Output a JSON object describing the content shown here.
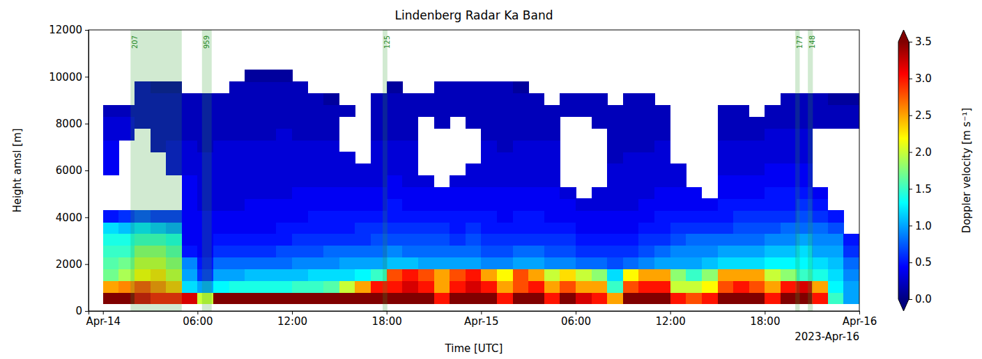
{
  "chart_data": {
    "type": "heatmap",
    "title": "Lindenberg Radar Ka Band",
    "x_label": "Time [UTC]",
    "y_label": "Height amsl [m]",
    "x_offset_label": "2023-Apr-16",
    "xlim": [
      "2023-04-13T23:05",
      "2023-04-16T00:00"
    ],
    "xticks": [
      {
        "value": "2023-04-14T00:00",
        "label": "Apr-14"
      },
      {
        "value": "2023-04-14T06:00",
        "label": "06:00"
      },
      {
        "value": "2023-04-14T12:00",
        "label": "12:00"
      },
      {
        "value": "2023-04-14T18:00",
        "label": "18:00"
      },
      {
        "value": "2023-04-15T00:00",
        "label": "Apr-15"
      },
      {
        "value": "2023-04-15T06:00",
        "label": "06:00"
      },
      {
        "value": "2023-04-15T12:00",
        "label": "12:00"
      },
      {
        "value": "2023-04-15T18:00",
        "label": "18:00"
      },
      {
        "value": "2023-04-16T00:00",
        "label": "Apr-16"
      }
    ],
    "ylim": [
      0,
      12000
    ],
    "yticks": [
      0,
      2000,
      4000,
      6000,
      8000,
      10000,
      12000
    ],
    "grid": false,
    "x_edges": [
      "2023-04-14T00:00",
      "2023-04-14T01:00",
      "2023-04-14T02:00",
      "2023-04-14T03:00",
      "2023-04-14T04:00",
      "2023-04-14T05:00",
      "2023-04-14T06:00",
      "2023-04-14T07:00",
      "2023-04-14T08:00",
      "2023-04-14T09:00",
      "2023-04-14T10:00",
      "2023-04-14T11:00",
      "2023-04-14T12:00",
      "2023-04-14T13:00",
      "2023-04-14T14:00",
      "2023-04-14T15:00",
      "2023-04-14T16:00",
      "2023-04-14T17:00",
      "2023-04-14T18:00",
      "2023-04-14T19:00",
      "2023-04-14T20:00",
      "2023-04-14T21:00",
      "2023-04-14T22:00",
      "2023-04-14T23:00",
      "2023-04-15T00:00",
      "2023-04-15T01:00",
      "2023-04-15T02:00",
      "2023-04-15T03:00",
      "2023-04-15T04:00",
      "2023-04-15T05:00",
      "2023-04-15T06:00",
      "2023-04-15T07:00",
      "2023-04-15T08:00",
      "2023-04-15T09:00",
      "2023-04-15T10:00",
      "2023-04-15T11:00",
      "2023-04-15T12:00",
      "2023-04-15T13:00",
      "2023-04-15T14:00",
      "2023-04-15T15:00",
      "2023-04-15T16:00",
      "2023-04-15T17:00",
      "2023-04-15T18:00",
      "2023-04-15T19:00",
      "2023-04-15T20:00",
      "2023-04-15T21:00",
      "2023-04-15T22:00",
      "2023-04-15T23:00",
      "2023-04-16T00:00"
    ],
    "y_edges": [
      300,
      800,
      1300,
      1800,
      2300,
      2800,
      3300,
      3800,
      4300,
      4800,
      5300,
      5800,
      6300,
      6800,
      7300,
      7800,
      8300,
      8800,
      9300,
      9800,
      10300
    ],
    "cells": [
      [
        3.5,
        2.5,
        1.7,
        1.6,
        1.5,
        1.4,
        1.2,
        0.5,
        null,
        null,
        null,
        0.4,
        0.4,
        0.4,
        0.3,
        0.3,
        0.2,
        null,
        null,
        null
      ],
      [
        3.5,
        2.6,
        1.9,
        1.7,
        1.5,
        1.4,
        1.1,
        0.6,
        null,
        null,
        null,
        null,
        null,
        null,
        0.3,
        0.3,
        0.2,
        null,
        null,
        null
      ],
      [
        3.2,
        2.8,
        2.2,
        2.0,
        1.8,
        1.5,
        1.2,
        0.7,
        null,
        null,
        null,
        null,
        null,
        null,
        null,
        0.2,
        0.2,
        0.2,
        0.2,
        null
      ],
      [
        3.0,
        2.6,
        2.3,
        2.0,
        1.8,
        1.5,
        1.1,
        0.6,
        null,
        null,
        null,
        null,
        null,
        0.2,
        0.2,
        0.2,
        0.2,
        0.2,
        0.1,
        null
      ],
      [
        3.0,
        2.4,
        2.0,
        1.8,
        1.6,
        1.4,
        1.0,
        0.6,
        null,
        null,
        null,
        0.3,
        0.3,
        0.3,
        0.2,
        0.2,
        0.2,
        0.2,
        0.1,
        null
      ],
      [
        3.2,
        1.2,
        1.0,
        0.9,
        0.5,
        0.4,
        0.4,
        0.4,
        0.4,
        0.4,
        0.4,
        0.3,
        0.3,
        0.3,
        0.2,
        0.2,
        0.2,
        0.2,
        null,
        null
      ],
      [
        2.0,
        1.0,
        0.6,
        0.5,
        0.4,
        0.4,
        0.4,
        0.4,
        0.3,
        0.3,
        0.3,
        0.3,
        0.3,
        0.2,
        0.2,
        0.2,
        0.2,
        0.2,
        null,
        null
      ],
      [
        3.5,
        1.3,
        1.0,
        0.8,
        0.6,
        0.5,
        0.4,
        0.4,
        0.3,
        0.3,
        0.3,
        0.3,
        0.3,
        0.3,
        0.2,
        0.2,
        0.2,
        0.2,
        null,
        null
      ],
      [
        3.5,
        1.4,
        1.0,
        0.8,
        0.6,
        0.5,
        0.4,
        0.4,
        0.3,
        0.3,
        0.3,
        0.3,
        0.3,
        0.3,
        0.2,
        0.2,
        0.2,
        0.2,
        0.2,
        null
      ],
      [
        3.5,
        1.4,
        1.1,
        0.8,
        0.6,
        0.5,
        0.4,
        0.4,
        0.4,
        0.3,
        0.3,
        0.3,
        0.3,
        0.3,
        0.2,
        0.2,
        0.2,
        0.2,
        0.2,
        0.1
      ],
      [
        3.5,
        1.4,
        1.1,
        0.8,
        0.6,
        0.5,
        0.4,
        0.4,
        0.4,
        0.3,
        0.3,
        0.3,
        0.3,
        0.3,
        0.2,
        0.2,
        0.2,
        0.2,
        0.2,
        0.1
      ],
      [
        3.5,
        1.4,
        1.1,
        0.8,
        0.7,
        0.5,
        0.5,
        0.4,
        0.4,
        0.3,
        0.3,
        0.3,
        0.3,
        0.3,
        0.3,
        0.2,
        0.2,
        0.2,
        0.2,
        0.1
      ],
      [
        3.5,
        1.5,
        1.1,
        0.9,
        0.7,
        0.6,
        0.5,
        0.4,
        0.4,
        0.4,
        0.3,
        0.3,
        0.3,
        0.3,
        0.2,
        0.2,
        0.2,
        0.2,
        0.2,
        null
      ],
      [
        3.5,
        1.5,
        1.2,
        0.9,
        0.7,
        0.6,
        0.5,
        0.5,
        0.4,
        0.4,
        0.3,
        0.3,
        0.3,
        0.3,
        0.2,
        0.2,
        0.2,
        0.2,
        null,
        null
      ],
      [
        3.5,
        1.6,
        1.2,
        0.9,
        0.8,
        0.6,
        0.5,
        0.5,
        0.4,
        0.4,
        0.3,
        0.3,
        0.3,
        0.3,
        0.2,
        0.2,
        0.2,
        0.1,
        null,
        null
      ],
      [
        3.5,
        2.0,
        1.2,
        1.0,
        0.8,
        0.6,
        0.5,
        0.5,
        0.4,
        0.4,
        0.3,
        0.3,
        0.3,
        null,
        null,
        null,
        0.2,
        null,
        null,
        null
      ],
      [
        3.5,
        2.5,
        1.3,
        1.0,
        0.8,
        0.6,
        0.6,
        0.5,
        0.4,
        0.4,
        0.3,
        0.3,
        null,
        null,
        null,
        null,
        null,
        null,
        null,
        null
      ],
      [
        3.5,
        3.0,
        1.5,
        1.0,
        0.8,
        0.7,
        0.6,
        0.5,
        0.4,
        0.4,
        0.3,
        0.3,
        0.3,
        0.3,
        0.2,
        0.2,
        0.2,
        0.2,
        null,
        null
      ],
      [
        3.5,
        3.0,
        2.8,
        1.1,
        0.9,
        0.7,
        0.6,
        0.5,
        0.5,
        0.4,
        0.4,
        0.3,
        0.3,
        0.3,
        0.2,
        0.2,
        0.2,
        0.2,
        0.1,
        null
      ],
      [
        3.5,
        3.2,
        3.0,
        1.1,
        0.8,
        0.7,
        0.6,
        0.5,
        0.4,
        0.4,
        0.3,
        0.3,
        0.3,
        0.3,
        0.2,
        0.2,
        0.2,
        0.2,
        null,
        null
      ],
      [
        3.5,
        3.0,
        2.8,
        1.0,
        0.8,
        0.7,
        0.6,
        0.5,
        0.4,
        0.4,
        0.3,
        null,
        null,
        null,
        null,
        null,
        0.2,
        0.2,
        null,
        null
      ],
      [
        3.0,
        2.5,
        2.5,
        1.0,
        0.8,
        0.7,
        0.6,
        0.5,
        0.4,
        0.4,
        null,
        null,
        null,
        null,
        null,
        0.2,
        0.2,
        0.2,
        0.2,
        null
      ],
      [
        3.5,
        3.0,
        2.8,
        1.0,
        0.8,
        0.6,
        0.5,
        0.5,
        0.4,
        0.4,
        0.3,
        null,
        null,
        null,
        null,
        null,
        0.2,
        0.2,
        0.2,
        null
      ],
      [
        3.5,
        3.2,
        3.0,
        1.0,
        0.8,
        0.7,
        0.6,
        0.5,
        0.4,
        0.4,
        0.3,
        0.3,
        null,
        null,
        null,
        0.2,
        0.2,
        0.2,
        0.2,
        null
      ],
      [
        3.5,
        3.0,
        2.5,
        0.9,
        0.7,
        0.6,
        0.5,
        0.5,
        0.4,
        0.4,
        0.3,
        0.3,
        0.3,
        0.3,
        0.2,
        0.2,
        0.2,
        0.2,
        0.2,
        null
      ],
      [
        3.0,
        2.5,
        2.2,
        0.9,
        0.7,
        0.6,
        0.5,
        0.4,
        0.4,
        0.4,
        0.3,
        0.3,
        0.3,
        0.2,
        0.2,
        0.2,
        0.2,
        0.2,
        0.2,
        null
      ],
      [
        3.5,
        2.8,
        2.8,
        1.0,
        0.8,
        0.6,
        0.5,
        0.5,
        0.4,
        0.4,
        0.3,
        0.3,
        0.3,
        0.3,
        0.2,
        0.2,
        0.2,
        0.2,
        0.1,
        null
      ],
      [
        3.5,
        3.0,
        2.5,
        1.0,
        0.8,
        0.6,
        0.5,
        0.5,
        0.4,
        0.4,
        0.3,
        0.3,
        0.3,
        0.3,
        0.2,
        0.2,
        0.2,
        0.2,
        null,
        null
      ],
      [
        3.0,
        2.5,
        2.0,
        0.9,
        0.7,
        0.6,
        0.5,
        0.4,
        0.4,
        0.4,
        0.3,
        0.3,
        0.3,
        0.3,
        0.2,
        0.2,
        0.2,
        null,
        null,
        null
      ],
      [
        3.5,
        2.8,
        2.3,
        0.9,
        0.7,
        0.6,
        0.5,
        0.4,
        0.4,
        0.3,
        null,
        null,
        null,
        null,
        null,
        null,
        0.2,
        0.2,
        null,
        null
      ],
      [
        3.2,
        2.5,
        2.0,
        0.8,
        0.6,
        0.5,
        0.4,
        0.4,
        0.3,
        null,
        null,
        null,
        null,
        null,
        null,
        null,
        0.2,
        0.2,
        null,
        null
      ],
      [
        3.0,
        2.5,
        1.8,
        0.8,
        0.6,
        0.5,
        0.4,
        0.4,
        0.3,
        0.3,
        null,
        null,
        null,
        null,
        null,
        0.2,
        0.2,
        0.2,
        null,
        null
      ],
      [
        2.5,
        1.5,
        1.2,
        0.7,
        0.6,
        0.5,
        0.4,
        0.4,
        0.3,
        0.3,
        0.3,
        0.3,
        0.2,
        0.2,
        0.2,
        0.2,
        0.2,
        null,
        null,
        null
      ],
      [
        3.5,
        2.8,
        2.2,
        0.8,
        0.6,
        0.5,
        0.4,
        0.4,
        0.3,
        0.3,
        0.3,
        0.3,
        0.3,
        0.2,
        0.2,
        0.2,
        0.2,
        0.2,
        null,
        null
      ],
      [
        3.5,
        3.0,
        2.5,
        0.9,
        0.7,
        0.6,
        0.5,
        0.4,
        0.4,
        0.3,
        0.3,
        0.3,
        0.3,
        0.2,
        0.2,
        0.2,
        0.2,
        0.2,
        null,
        null
      ],
      [
        3.5,
        3.0,
        2.5,
        1.0,
        0.8,
        0.6,
        0.5,
        0.5,
        0.4,
        0.4,
        0.3,
        0.3,
        0.3,
        0.3,
        0.2,
        0.2,
        0.2,
        null,
        null,
        null
      ],
      [
        3.0,
        2.0,
        1.8,
        1.0,
        0.9,
        0.7,
        0.6,
        0.5,
        0.4,
        0.4,
        0.3,
        0.3,
        null,
        null,
        null,
        null,
        null,
        null,
        null,
        null
      ],
      [
        2.8,
        2.0,
        1.5,
        1.0,
        0.9,
        0.8,
        0.6,
        0.5,
        0.4,
        0.4,
        null,
        null,
        null,
        null,
        null,
        null,
        null,
        null,
        null,
        null
      ],
      [
        3.0,
        2.2,
        1.8,
        1.1,
        0.9,
        0.8,
        0.6,
        0.5,
        0.4,
        null,
        null,
        null,
        null,
        null,
        null,
        null,
        null,
        null,
        null,
        null
      ],
      [
        3.5,
        2.8,
        2.5,
        1.2,
        1.0,
        0.8,
        0.6,
        0.5,
        0.5,
        0.4,
        0.4,
        0.3,
        0.3,
        0.3,
        0.2,
        0.2,
        0.2,
        null,
        null,
        null
      ],
      [
        3.5,
        3.0,
        2.5,
        1.2,
        1.0,
        0.8,
        0.7,
        0.6,
        0.5,
        0.4,
        0.4,
        0.3,
        0.3,
        0.3,
        0.2,
        0.2,
        0.2,
        null,
        null,
        null
      ],
      [
        3.5,
        2.8,
        2.5,
        1.2,
        1.0,
        0.8,
        0.7,
        0.6,
        0.5,
        0.4,
        0.4,
        0.3,
        0.3,
        0.3,
        0.2,
        0.2,
        null,
        null,
        null,
        null
      ],
      [
        3.0,
        2.5,
        2.0,
        1.3,
        1.1,
        0.9,
        0.7,
        0.6,
        0.5,
        0.5,
        0.4,
        0.4,
        0.3,
        0.3,
        0.3,
        0.2,
        0.2,
        null,
        null,
        null
      ],
      [
        3.5,
        3.0,
        1.8,
        1.3,
        1.1,
        0.9,
        0.8,
        0.6,
        0.5,
        0.5,
        0.4,
        0.4,
        0.3,
        0.3,
        0.3,
        0.2,
        0.2,
        0.2,
        null,
        null
      ],
      [
        3.5,
        3.2,
        1.5,
        1.3,
        1.2,
        1.0,
        0.8,
        0.7,
        0.6,
        0.5,
        0.4,
        0.4,
        0.3,
        0.3,
        0.3,
        0.2,
        0.2,
        0.2,
        null,
        null
      ],
      [
        3.0,
        2.5,
        1.4,
        1.2,
        1.0,
        0.9,
        0.8,
        0.6,
        0.5,
        0.4,
        null,
        null,
        null,
        null,
        null,
        0.2,
        0.2,
        0.2,
        null,
        null
      ],
      [
        1.5,
        1.3,
        1.2,
        1.1,
        1.0,
        0.9,
        0.7,
        0.5,
        null,
        null,
        null,
        null,
        null,
        null,
        null,
        0.2,
        0.2,
        0.1,
        null,
        null
      ],
      [
        1.0,
        1.0,
        0.9,
        0.8,
        0.6,
        0.5,
        null,
        null,
        null,
        null,
        null,
        null,
        null,
        null,
        null,
        0.2,
        0.2,
        0.1,
        null,
        null
      ]
    ],
    "colorbar": {
      "label": "Doppler velocity [m s⁻¹]",
      "range": [
        0,
        3.5
      ],
      "ticks": [
        {
          "value": 0,
          "label": "0.0"
        },
        0.5,
        {
          "value": 1,
          "label": "1.0"
        },
        1.5,
        {
          "value": 2,
          "label": "2.0"
        },
        2.5,
        {
          "value": 3,
          "label": "3.0"
        },
        3.5
      ]
    },
    "annotations": [
      {
        "start": "2023-04-14T01:45",
        "end": "2023-04-14T05:00",
        "label": "207"
      },
      {
        "start": "2023-04-14T06:17",
        "end": "2023-04-14T06:54",
        "label": "959"
      },
      {
        "start": "2023-04-14T17:45",
        "end": "2023-04-14T18:03",
        "label": "125"
      },
      {
        "start": "2023-04-15T19:56",
        "end": "2023-04-15T20:13",
        "label": "177"
      },
      {
        "start": "2023-04-15T20:44",
        "end": "2023-04-15T21:03",
        "label": "148"
      }
    ]
  }
}
